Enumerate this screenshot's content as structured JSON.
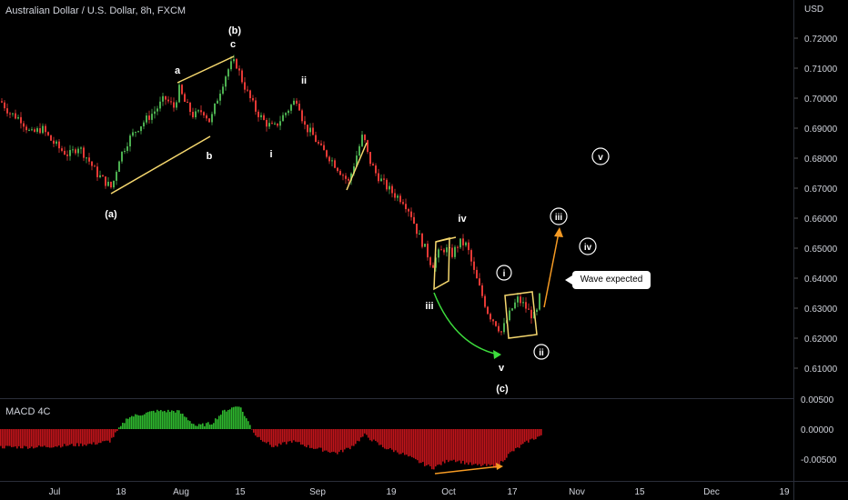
{
  "header": {
    "title": "Australian Dollar / U.S. Dollar, 8h, FXCM",
    "currency": "USD"
  },
  "macd": {
    "label": "MACD 4C"
  },
  "callout": {
    "text": "Wave expected"
  },
  "colors": {
    "up": "#4caf50",
    "down": "#e53935",
    "yellow": "#f5d76e",
    "orange": "#f59a23",
    "green_arrow": "#3ddc3d"
  },
  "chart_data": [
    {
      "type": "candlestick",
      "title": "Australian Dollar / U.S. Dollar, 8h, FXCM",
      "ylabel": "USD",
      "ylim": [
        0.6,
        0.72
      ],
      "y_ticks": [
        "0.72000",
        "0.71000",
        "0.70000",
        "0.69000",
        "0.68000",
        "0.67000",
        "0.66000",
        "0.65000",
        "0.64000",
        "0.63000",
        "0.62000",
        "0.61000"
      ],
      "x_ticks": [
        "Jul",
        "18",
        "Aug",
        "15",
        "Sep",
        "19",
        "Oct",
        "17",
        "Nov",
        "15",
        "Dec",
        "19"
      ],
      "close_path": [
        {
          "x": 0,
          "y": 0.699
        },
        {
          "x": 10,
          "y": 0.695
        },
        {
          "x": 22,
          "y": 0.693
        },
        {
          "x": 33,
          "y": 0.688
        },
        {
          "x": 45,
          "y": 0.69
        },
        {
          "x": 55,
          "y": 0.686
        },
        {
          "x": 65,
          "y": 0.683
        },
        {
          "x": 75,
          "y": 0.681
        },
        {
          "x": 85,
          "y": 0.684
        },
        {
          "x": 95,
          "y": 0.68
        },
        {
          "x": 105,
          "y": 0.675
        },
        {
          "x": 115,
          "y": 0.672
        },
        {
          "x": 122,
          "y": 0.67
        },
        {
          "x": 130,
          "y": 0.68
        },
        {
          "x": 140,
          "y": 0.686
        },
        {
          "x": 150,
          "y": 0.69
        },
        {
          "x": 160,
          "y": 0.693
        },
        {
          "x": 170,
          "y": 0.696
        },
        {
          "x": 180,
          "y": 0.7
        },
        {
          "x": 190,
          "y": 0.697
        },
        {
          "x": 196,
          "y": 0.703
        },
        {
          "x": 203,
          "y": 0.698
        },
        {
          "x": 212,
          "y": 0.694
        },
        {
          "x": 222,
          "y": 0.696
        },
        {
          "x": 230,
          "y": 0.692
        },
        {
          "x": 238,
          "y": 0.7
        },
        {
          "x": 246,
          "y": 0.707
        },
        {
          "x": 252,
          "y": 0.711
        },
        {
          "x": 258,
          "y": 0.712
        },
        {
          "x": 265,
          "y": 0.706
        },
        {
          "x": 272,
          "y": 0.701
        },
        {
          "x": 280,
          "y": 0.696
        },
        {
          "x": 290,
          "y": 0.692
        },
        {
          "x": 300,
          "y": 0.69
        },
        {
          "x": 310,
          "y": 0.694
        },
        {
          "x": 320,
          "y": 0.698
        },
        {
          "x": 326,
          "y": 0.7
        },
        {
          "x": 333,
          "y": 0.691
        },
        {
          "x": 342,
          "y": 0.688
        },
        {
          "x": 352,
          "y": 0.683
        },
        {
          "x": 362,
          "y": 0.68
        },
        {
          "x": 372,
          "y": 0.676
        },
        {
          "x": 382,
          "y": 0.672
        },
        {
          "x": 390,
          "y": 0.68
        },
        {
          "x": 398,
          "y": 0.688
        },
        {
          "x": 404,
          "y": 0.68
        },
        {
          "x": 412,
          "y": 0.675
        },
        {
          "x": 422,
          "y": 0.671
        },
        {
          "x": 432,
          "y": 0.668
        },
        {
          "x": 442,
          "y": 0.666
        },
        {
          "x": 450,
          "y": 0.662
        },
        {
          "x": 458,
          "y": 0.655
        },
        {
          "x": 466,
          "y": 0.65
        },
        {
          "x": 474,
          "y": 0.644
        },
        {
          "x": 480,
          "y": 0.648
        },
        {
          "x": 488,
          "y": 0.65
        },
        {
          "x": 496,
          "y": 0.648
        },
        {
          "x": 504,
          "y": 0.652
        },
        {
          "x": 512,
          "y": 0.651
        },
        {
          "x": 520,
          "y": 0.642
        },
        {
          "x": 528,
          "y": 0.635
        },
        {
          "x": 536,
          "y": 0.628
        },
        {
          "x": 544,
          "y": 0.625
        },
        {
          "x": 550,
          "y": 0.622
        },
        {
          "x": 556,
          "y": 0.626
        },
        {
          "x": 562,
          "y": 0.63
        },
        {
          "x": 568,
          "y": 0.633
        },
        {
          "x": 575,
          "y": 0.631
        },
        {
          "x": 582,
          "y": 0.628
        },
        {
          "x": 588,
          "y": 0.627
        },
        {
          "x": 594,
          "y": 0.637
        }
      ]
    },
    {
      "type": "bar",
      "title": "MACD 4C",
      "y_ticks": [
        "0.00500",
        "0.00000",
        "-0.00500"
      ],
      "values_profile": [
        {
          "x": 0,
          "v": -0.003
        },
        {
          "x": 40,
          "v": -0.003
        },
        {
          "x": 100,
          "v": -0.0025
        },
        {
          "x": 120,
          "v": -0.002
        },
        {
          "x": 140,
          "v": 0.002
        },
        {
          "x": 170,
          "v": 0.003
        },
        {
          "x": 195,
          "v": 0.003
        },
        {
          "x": 215,
          "v": 0.0005
        },
        {
          "x": 232,
          "v": 0.001
        },
        {
          "x": 245,
          "v": 0.003
        },
        {
          "x": 262,
          "v": 0.004
        },
        {
          "x": 280,
          "v": -0.001
        },
        {
          "x": 300,
          "v": -0.003
        },
        {
          "x": 320,
          "v": -0.002
        },
        {
          "x": 340,
          "v": -0.003
        },
        {
          "x": 370,
          "v": -0.004
        },
        {
          "x": 385,
          "v": -0.003
        },
        {
          "x": 400,
          "v": -0.001
        },
        {
          "x": 420,
          "v": -0.003
        },
        {
          "x": 440,
          "v": -0.004
        },
        {
          "x": 460,
          "v": -0.0055
        },
        {
          "x": 475,
          "v": -0.0065
        },
        {
          "x": 495,
          "v": -0.005
        },
        {
          "x": 520,
          "v": -0.006
        },
        {
          "x": 545,
          "v": -0.0062
        },
        {
          "x": 560,
          "v": -0.004
        },
        {
          "x": 580,
          "v": -0.002
        },
        {
          "x": 595,
          "v": -0.001
        }
      ]
    }
  ],
  "wave_labels": {
    "b_paren": "(b)",
    "c": "c",
    "a": "a",
    "b": "b",
    "a_paren": "(a)",
    "ii_top": "ii",
    "i": "i",
    "iv": "iv",
    "iii": "iii",
    "v": "v",
    "c_paren": "(c)",
    "circ_i": "i",
    "circ_ii": "ii",
    "circ_iii": "iii",
    "circ_iv": "iv",
    "circ_v": "v"
  }
}
